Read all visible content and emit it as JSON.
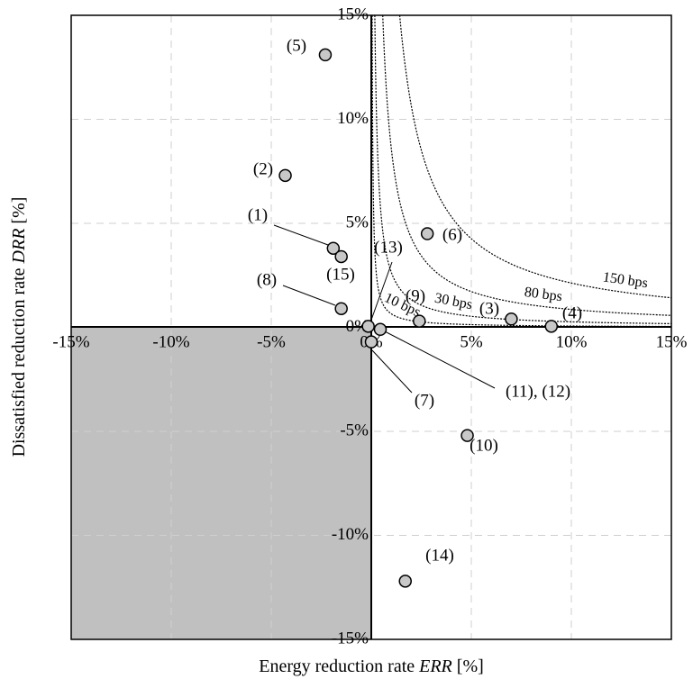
{
  "chart_data": {
    "type": "scatter",
    "xlabel_plain": "Energy reduction rate ",
    "xlabel_italic": "ERR",
    "xlabel_unit": " [%]",
    "ylabel_plain": "Dissatisfied reduction rate ",
    "ylabel_italic": "DRR",
    "ylabel_unit": " [%]",
    "xlim": [
      -15,
      15
    ],
    "ylim": [
      -15,
      15
    ],
    "grid": true,
    "x_ticks": [
      {
        "value": -15,
        "label": "-15%"
      },
      {
        "value": -10,
        "label": "-10%"
      },
      {
        "value": -5,
        "label": "-5%"
      },
      {
        "value": 0,
        "label": "0%"
      },
      {
        "value": 5,
        "label": "5%"
      },
      {
        "value": 10,
        "label": "10%"
      },
      {
        "value": 15,
        "label": "15%"
      }
    ],
    "y_ticks": [
      {
        "value": 15,
        "label": "15%"
      },
      {
        "value": 10,
        "label": "10%"
      },
      {
        "value": 5,
        "label": "5%"
      },
      {
        "value": 0,
        "label": "0%"
      },
      {
        "value": -5,
        "label": "-5%"
      },
      {
        "value": -10,
        "label": "-10%"
      },
      {
        "value": -15,
        "label": "-15%"
      }
    ],
    "shaded_region": {
      "x": [
        -15,
        0
      ],
      "y": [
        -15,
        0
      ],
      "color": "#c0c0c0"
    },
    "marker_color": "#c8c8c8",
    "points": [
      {
        "id": "p1",
        "x": -1.9,
        "y": 3.8,
        "label": "(1)"
      },
      {
        "id": "p2",
        "x": -4.3,
        "y": 7.3,
        "label": "(2)"
      },
      {
        "id": "p3",
        "x": 7.0,
        "y": 0.4,
        "label": "(3)"
      },
      {
        "id": "p4",
        "x": 9.0,
        "y": 0.05,
        "label": "(4)"
      },
      {
        "id": "p5",
        "x": -2.3,
        "y": 13.1,
        "label": "(5)"
      },
      {
        "id": "p6",
        "x": 2.8,
        "y": 4.5,
        "label": "(6)"
      },
      {
        "id": "p7",
        "x": 0.0,
        "y": -0.7,
        "label": "(7)"
      },
      {
        "id": "p8",
        "x": -1.5,
        "y": 0.9,
        "label": "(8)"
      },
      {
        "id": "p9",
        "x": 2.4,
        "y": 0.3,
        "label": "(9)"
      },
      {
        "id": "p10",
        "x": 4.8,
        "y": -5.2,
        "label": "(10)"
      },
      {
        "id": "p11",
        "x": 0.45,
        "y": -0.1,
        "label": "(11), (12)"
      },
      {
        "id": "p13",
        "x": -0.15,
        "y": 0.05,
        "label": "(13)"
      },
      {
        "id": "p14",
        "x": 1.7,
        "y": -12.2,
        "label": "(14)"
      },
      {
        "id": "p15",
        "x": -1.5,
        "y": 3.4,
        "label": "(15)"
      }
    ],
    "curves": [
      {
        "label": "10 bps",
        "k": 0.65
      },
      {
        "label": "30 bps",
        "k": 2.65
      },
      {
        "label": "80 bps",
        "k": 8.6
      },
      {
        "label": "150 bps",
        "k": 21.3
      }
    ]
  }
}
